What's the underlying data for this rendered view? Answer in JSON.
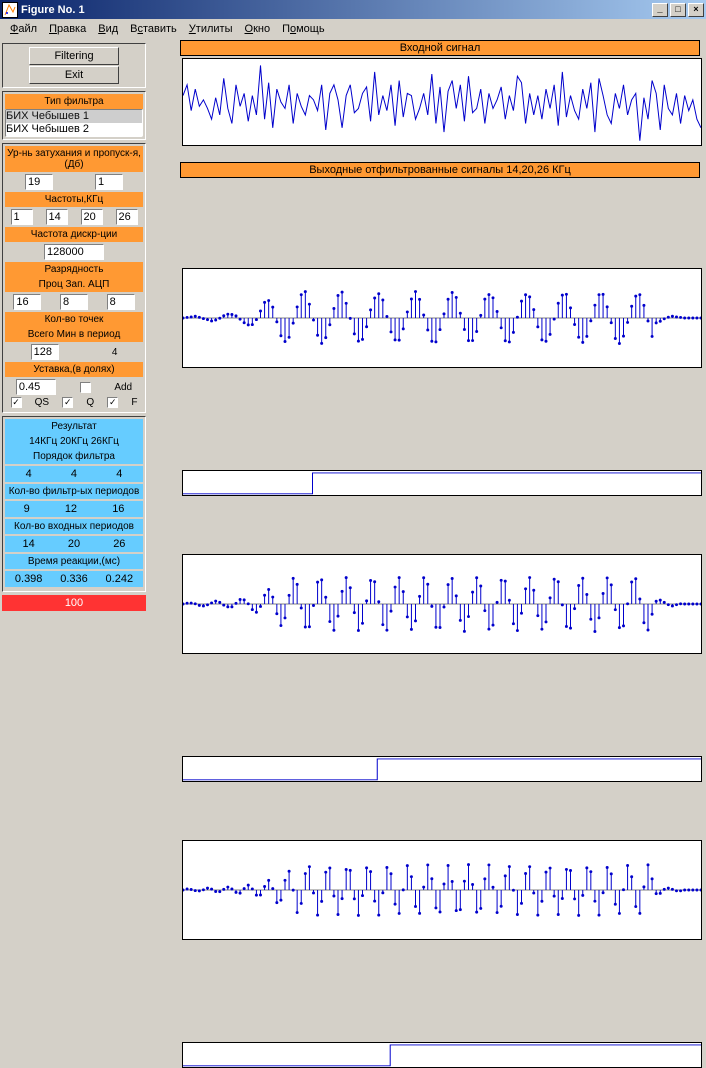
{
  "window": {
    "title": "Figure No. 1"
  },
  "menubar": [
    "Файл",
    "Правка",
    "Вид",
    "Вставить",
    "Утилиты",
    "Окно",
    "Помощь"
  ],
  "sidebar": {
    "buttons": {
      "filtering": "Filtering",
      "exit": "Exit"
    },
    "filter_type": {
      "label": "Тип фильтра",
      "options": [
        "БИХ Чебышев 1",
        "БИХ Чебышев 2"
      ]
    },
    "atten": {
      "label": "Ур-нь затухания и пропуск-я,(Дб)",
      "val1": "19",
      "val2": "1"
    },
    "freq": {
      "label": "Частоты,КГц",
      "v1": "1",
      "v2": "14",
      "v3": "20",
      "v4": "26"
    },
    "samp": {
      "label": "Частота дискр-ции",
      "val": "128000"
    },
    "bits": {
      "label": "Разрядность",
      "sub": "Проц  Зап.  АЦП",
      "v1": "16",
      "v2": "8",
      "v3": "8"
    },
    "pts": {
      "label": "Кол-во точек",
      "sub": "Всего Мин в период",
      "v1": "128",
      "v2": "4"
    },
    "ustavka": {
      "label": "Уставка,(в долях)",
      "val": "0.45",
      "add": "Add",
      "qs": "QS",
      "q": "Q",
      "f": "F"
    },
    "result": {
      "label": "Результат",
      "sub": "14КГц 20КГц 26КГц"
    },
    "order": {
      "label": "Порядок фильтра",
      "v1": "4",
      "v2": "4",
      "v3": "4"
    },
    "fper": {
      "label": "Кол-во фильтр-ых периодов",
      "v1": "9",
      "v2": "12",
      "v3": "16"
    },
    "inper": {
      "label": "Кол-во входных периодов",
      "v1": "14",
      "v2": "20",
      "v3": "26"
    },
    "react": {
      "label": "Время реакции,(мс)",
      "v1": "0.398",
      "v2": "0.336",
      "v3": "0.242"
    },
    "status": "100"
  },
  "plots": {
    "top": {
      "title": "Входной сигнал",
      "xlim": [
        0,
        140
      ],
      "ylim": [
        -200,
        200
      ],
      "xticks": [
        0,
        20,
        40,
        60,
        80,
        100,
        120,
        140
      ],
      "yticks": [
        -200,
        0,
        200
      ],
      "color": "#0000cc",
      "data": [
        30,
        80,
        -40,
        60,
        -20,
        10,
        -30,
        -80,
        20,
        -60,
        110,
        -30,
        -100,
        80,
        -20,
        40,
        -90,
        30,
        -60,
        170,
        -80,
        90,
        -120,
        60,
        0,
        -30,
        80,
        -100,
        40,
        -20,
        -60,
        30,
        10,
        -40,
        80,
        -130,
        40,
        80,
        10,
        -120,
        30,
        80,
        -50,
        -30,
        40,
        70,
        -90,
        140,
        -60,
        30,
        -40,
        80,
        -110,
        100,
        -70,
        40,
        30,
        -80,
        -30,
        40,
        -60,
        130,
        -100,
        70,
        -140,
        50,
        100,
        -30,
        80,
        -90,
        120,
        -50,
        -30,
        60,
        -100,
        40,
        -30,
        10,
        70,
        -80,
        30,
        -40,
        120,
        90,
        -100,
        40,
        -60,
        30,
        -80,
        60,
        -30,
        80,
        -110,
        140,
        -70,
        30,
        -40,
        -80,
        60,
        -30,
        90,
        -140,
        110,
        30,
        -60,
        -100,
        40,
        -30,
        80,
        -60,
        10,
        40,
        -180,
        20,
        -80,
        100,
        40,
        -130,
        80,
        -30,
        -60,
        40,
        -100,
        30,
        -40,
        10,
        -80,
        -120
      ]
    },
    "out": {
      "title": "Выходные отфильтрованные сигналы 14,20,26 КГц",
      "xlim": [
        0,
        120
      ],
      "ylim": [
        -50,
        50
      ],
      "xticks": [
        0,
        20,
        40,
        60,
        80,
        100,
        120
      ],
      "yticks": [
        -50,
        0,
        50
      ],
      "color": "#0000cc",
      "step_ylim": [
        0,
        1
      ],
      "step_yticks": [
        0,
        0.5,
        1
      ],
      "rows": [
        {
          "step_x": 30,
          "env": [
            1,
            1,
            1,
            2,
            2,
            2,
            2,
            3,
            3,
            3,
            4,
            4,
            4,
            5,
            5,
            6,
            7,
            9,
            11,
            14,
            17,
            19,
            22,
            24,
            24,
            24,
            25,
            24,
            25,
            26,
            28,
            25,
            24,
            25,
            26,
            24,
            24,
            25,
            26,
            27,
            24,
            24,
            25,
            24,
            25,
            25,
            26,
            24,
            25,
            27,
            26,
            24,
            23,
            25,
            26,
            25,
            24,
            27,
            26,
            24,
            23,
            25,
            26,
            24,
            24,
            25,
            26,
            27,
            24,
            25,
            25,
            24,
            25,
            26,
            27,
            24,
            25,
            24,
            25,
            26,
            25,
            24,
            25,
            26,
            24,
            25,
            25,
            27,
            26,
            24,
            25,
            26,
            25,
            24,
            27,
            25,
            25,
            24,
            25,
            26,
            25,
            24,
            25,
            26,
            24,
            25,
            27,
            26,
            24,
            24,
            25,
            24,
            25,
            24,
            25,
            26,
            5,
            4,
            3,
            2,
            2,
            1,
            1,
            0,
            0,
            0,
            0,
            0
          ]
        },
        {
          "step_x": 45,
          "env": [
            1,
            1,
            1,
            1,
            2,
            2,
            2,
            2,
            3,
            3,
            3,
            3,
            4,
            4,
            5,
            5,
            6,
            7,
            9,
            11,
            13,
            15,
            17,
            19,
            22,
            24,
            26,
            27,
            27,
            28,
            26,
            27,
            27,
            28,
            26,
            27,
            27,
            27,
            28,
            26,
            27,
            27,
            28,
            28,
            26,
            27,
            27,
            26,
            27,
            27,
            28,
            26,
            27,
            27,
            27,
            28,
            26,
            27,
            27,
            28,
            26,
            27,
            27,
            27,
            28,
            26,
            27,
            27,
            27,
            28,
            26,
            27,
            27,
            28,
            26,
            27,
            27,
            27,
            28,
            26,
            27,
            27,
            28,
            28,
            26,
            27,
            27,
            28,
            26,
            27,
            27,
            27,
            28,
            26,
            27,
            27,
            28,
            26,
            27,
            27,
            27,
            28,
            26,
            27,
            27,
            28,
            28,
            26,
            27,
            27,
            27,
            28,
            26,
            27,
            27,
            27,
            5,
            4,
            3,
            2,
            2,
            1,
            1,
            0,
            0,
            0,
            0,
            0
          ]
        },
        {
          "step_x": 48,
          "env": [
            1,
            1,
            1,
            1,
            1,
            2,
            2,
            2,
            2,
            2,
            3,
            3,
            3,
            3,
            4,
            4,
            5,
            5,
            6,
            7,
            8,
            10,
            12,
            14,
            16,
            18,
            20,
            22,
            24,
            25,
            26,
            26,
            25,
            26,
            26,
            25,
            26,
            26,
            25,
            26,
            26,
            25,
            26,
            26,
            25,
            26,
            26,
            25,
            26,
            26,
            25,
            26,
            26,
            25,
            26,
            26,
            25,
            26,
            26,
            25,
            26,
            26,
            25,
            26,
            26,
            25,
            26,
            26,
            25,
            26,
            26,
            25,
            26,
            26,
            25,
            26,
            26,
            25,
            26,
            26,
            25,
            26,
            26,
            25,
            26,
            26,
            25,
            26,
            26,
            25,
            26,
            26,
            25,
            26,
            26,
            25,
            26,
            26,
            25,
            26,
            26,
            25,
            26,
            26,
            25,
            26,
            26,
            25,
            26,
            26,
            25,
            26,
            26,
            25,
            26,
            26,
            5,
            4,
            3,
            2,
            2,
            1,
            1,
            0,
            0,
            0,
            0,
            0
          ]
        }
      ]
    }
  },
  "colors": {
    "orange": "#ff9933",
    "blue": "#66ccff",
    "plot": "#0000cc"
  }
}
